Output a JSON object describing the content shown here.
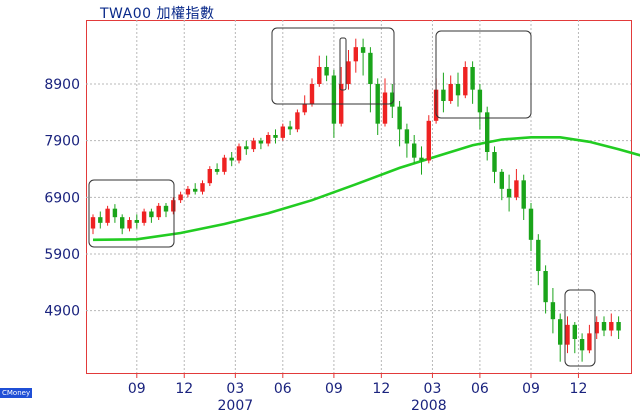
{
  "header": {
    "title": "TWA00 加權指數"
  },
  "watermark": {
    "text": "CMoney"
  },
  "colors": {
    "up": "#ee2222",
    "down": "#1aa41a",
    "ma": "#22cc22",
    "frame": "#e23a3a",
    "grid": "#b8b8b8"
  },
  "chart_data": {
    "type": "candlestick",
    "title": "TWA00 加權指數",
    "grid": true,
    "y_ticks": [
      4900,
      5900,
      6900,
      7900,
      8900
    ],
    "ylim": [
      3800,
      9950
    ],
    "xlim": [
      0,
      85
    ],
    "x_month_ticks": [
      {
        "label": "09",
        "t": 6
      },
      {
        "label": "12",
        "t": 12.5
      },
      {
        "label": "03",
        "t": 19.5
      },
      {
        "label": "06",
        "t": 26
      },
      {
        "label": "09",
        "t": 33
      },
      {
        "label": "12",
        "t": 39.5
      },
      {
        "label": "03",
        "t": 46.5
      },
      {
        "label": "06",
        "t": 53
      },
      {
        "label": "09",
        "t": 60
      },
      {
        "label": "12",
        "t": 66.5
      }
    ],
    "x_year_labels": [
      {
        "label": "2007",
        "t": 19.5
      },
      {
        "label": "2008",
        "t": 46
      }
    ],
    "candles": [
      [
        6350,
        6550,
        6250,
        6600
      ],
      [
        6550,
        6450,
        6350,
        6650
      ],
      [
        6450,
        6700,
        6400,
        6750
      ],
      [
        6700,
        6550,
        6450,
        6780
      ],
      [
        6550,
        6350,
        6250,
        6600
      ],
      [
        6350,
        6500,
        6300,
        6550
      ],
      [
        6500,
        6450,
        6350,
        6600
      ],
      [
        6450,
        6650,
        6400,
        6700
      ],
      [
        6650,
        6550,
        6450,
        6700
      ],
      [
        6550,
        6750,
        6500,
        6800
      ],
      [
        6750,
        6650,
        6550,
        6800
      ],
      [
        6650,
        6850,
        6600,
        6900
      ],
      [
        6850,
        6950,
        6800,
        7000
      ],
      [
        6950,
        7050,
        6900,
        7100
      ],
      [
        7050,
        7000,
        6950,
        7150
      ],
      [
        7000,
        7150,
        6950,
        7200
      ],
      [
        7150,
        7400,
        7100,
        7450
      ],
      [
        7400,
        7350,
        7300,
        7500
      ],
      [
        7350,
        7600,
        7300,
        7650
      ],
      [
        7600,
        7550,
        7450,
        7700
      ],
      [
        7550,
        7800,
        7500,
        7850
      ],
      [
        7800,
        7750,
        7650,
        7900
      ],
      [
        7750,
        7900,
        7700,
        7950
      ],
      [
        7900,
        7850,
        7750,
        7950
      ],
      [
        7850,
        8000,
        7800,
        8050
      ],
      [
        8000,
        7950,
        7850,
        8100
      ],
      [
        7950,
        8150,
        7900,
        8200
      ],
      [
        8150,
        8100,
        8000,
        8250
      ],
      [
        8100,
        8400,
        8050,
        8450
      ],
      [
        8400,
        8550,
        8350,
        8700
      ],
      [
        8550,
        8900,
        8500,
        9000
      ],
      [
        8900,
        9200,
        8850,
        9400
      ],
      [
        9200,
        9050,
        8950,
        9400
      ],
      [
        9050,
        8200,
        7950,
        9150
      ],
      [
        8200,
        8900,
        8150,
        9200
      ],
      [
        8900,
        9300,
        8800,
        9500
      ],
      [
        9300,
        9550,
        9100,
        9700
      ],
      [
        9550,
        9450,
        9050,
        9700
      ],
      [
        9450,
        8900,
        8400,
        9550
      ],
      [
        8900,
        8200,
        8000,
        9000
      ],
      [
        8200,
        8750,
        8150,
        9000
      ],
      [
        8750,
        8500,
        8300,
        8900
      ],
      [
        8500,
        8100,
        7800,
        8600
      ],
      [
        8100,
        7850,
        7600,
        8200
      ],
      [
        7850,
        7600,
        7500,
        8000
      ],
      [
        7600,
        7550,
        7300,
        7800
      ],
      [
        7550,
        8250,
        7500,
        8350
      ],
      [
        8250,
        8800,
        8200,
        9000
      ],
      [
        8800,
        8600,
        8400,
        9100
      ],
      [
        8600,
        8900,
        8550,
        9050
      ],
      [
        8900,
        8700,
        8500,
        9100
      ],
      [
        8700,
        9200,
        8650,
        9300
      ],
      [
        9200,
        8800,
        8550,
        9300
      ],
      [
        8800,
        8400,
        8100,
        8900
      ],
      [
        8400,
        7700,
        7550,
        8500
      ],
      [
        7700,
        7350,
        7150,
        7800
      ],
      [
        7350,
        7050,
        6850,
        7400
      ],
      [
        7050,
        6900,
        6650,
        7300
      ],
      [
        6900,
        7200,
        6850,
        7400
      ],
      [
        7200,
        6700,
        6500,
        7300
      ],
      [
        6700,
        6150,
        5950,
        6800
      ],
      [
        6150,
        5600,
        5350,
        6250
      ],
      [
        5600,
        5050,
        4850,
        5700
      ],
      [
        5050,
        4750,
        4500,
        5300
      ],
      [
        4750,
        4300,
        4000,
        4850
      ],
      [
        4300,
        4650,
        4150,
        4800
      ],
      [
        4650,
        4400,
        4150,
        4700
      ],
      [
        4400,
        4200,
        4000,
        4500
      ],
      [
        4200,
        4500,
        4150,
        4650
      ],
      [
        4500,
        4700,
        4400,
        4800
      ],
      [
        4700,
        4550,
        4450,
        4800
      ],
      [
        4550,
        4700,
        4450,
        4850
      ],
      [
        4700,
        4550,
        4400,
        4800
      ]
    ],
    "moving_average": {
      "t": [
        0,
        6,
        12,
        18,
        24,
        30,
        36,
        42,
        48,
        52,
        56,
        60,
        64,
        68,
        72,
        75
      ],
      "values": [
        6150,
        6160,
        6270,
        6430,
        6620,
        6850,
        7130,
        7420,
        7660,
        7820,
        7920,
        7960,
        7960,
        7880,
        7750,
        7640
      ]
    }
  }
}
